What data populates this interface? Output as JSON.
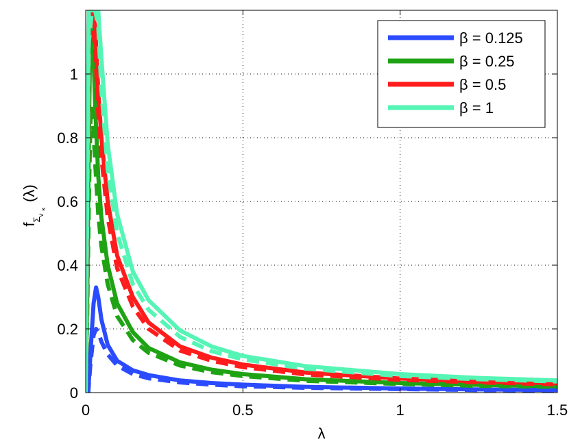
{
  "chart_data": {
    "type": "line",
    "title": "",
    "xlabel": "λ",
    "ylabel_main": "f",
    "ylabel_sub": "Σ",
    "ylabel_sub2": "ν",
    "ylabel_sub3": "κ",
    "ylabel_arg": "(λ)",
    "xlim": [
      0,
      1.5
    ],
    "ylim": [
      0,
      1.2
    ],
    "xticks": [
      0,
      0.5,
      1,
      1.5
    ],
    "xtick_labels": [
      "0",
      "0.5",
      "1",
      "1.5"
    ],
    "yticks": [
      0,
      0.2,
      0.4,
      0.6,
      0.8,
      1
    ],
    "ytick_labels": [
      "0",
      "0.2",
      "0.4",
      "0.6",
      "0.8",
      "1"
    ],
    "grid": true,
    "legend_position": "top-right",
    "series": [
      {
        "name": "β = 0.125",
        "color": "#2b4bff",
        "solid": {
          "x": [
            0.0,
            0.008,
            0.015,
            0.025,
            0.033,
            0.04,
            0.05,
            0.07,
            0.1,
            0.15,
            0.2,
            0.3,
            0.4,
            0.5,
            0.7,
            1.0,
            1.25,
            1.5
          ],
          "y": [
            0.0,
            0.0,
            0.12,
            0.28,
            0.33,
            0.3,
            0.23,
            0.15,
            0.1,
            0.07,
            0.055,
            0.038,
            0.03,
            0.025,
            0.018,
            0.013,
            0.01,
            0.008
          ]
        },
        "dashed": {
          "x": [
            0.0,
            0.008,
            0.015,
            0.025,
            0.033,
            0.04,
            0.05,
            0.07,
            0.1,
            0.15,
            0.2,
            0.3,
            0.4,
            0.5,
            0.7,
            1.0,
            1.25,
            1.5
          ],
          "y": [
            0.0,
            0.0,
            0.09,
            0.18,
            0.2,
            0.19,
            0.16,
            0.12,
            0.085,
            0.058,
            0.045,
            0.032,
            0.025,
            0.02,
            0.015,
            0.011,
            0.008,
            0.007
          ]
        }
      },
      {
        "name": "β = 0.25",
        "color": "#1fa314",
        "solid": {
          "x": [
            0.0,
            0.005,
            0.01,
            0.015,
            0.02,
            0.03,
            0.04,
            0.05,
            0.07,
            0.1,
            0.15,
            0.2,
            0.3,
            0.4,
            0.5,
            0.7,
            1.0,
            1.25,
            1.5
          ],
          "y": [
            0.0,
            0.3,
            0.8,
            1.15,
            1.2,
            0.9,
            0.68,
            0.55,
            0.4,
            0.28,
            0.19,
            0.14,
            0.095,
            0.072,
            0.058,
            0.042,
            0.03,
            0.024,
            0.02
          ]
        },
        "dashed": {
          "x": [
            0.0,
            0.005,
            0.01,
            0.015,
            0.02,
            0.03,
            0.04,
            0.05,
            0.07,
            0.1,
            0.15,
            0.2,
            0.3,
            0.4,
            0.5,
            0.7,
            1.0,
            1.25,
            1.5
          ],
          "y": [
            0.0,
            0.25,
            0.6,
            0.85,
            0.9,
            0.72,
            0.56,
            0.46,
            0.34,
            0.24,
            0.165,
            0.125,
            0.085,
            0.064,
            0.052,
            0.037,
            0.027,
            0.021,
            0.018
          ]
        }
      },
      {
        "name": "β = 0.5",
        "color": "#ff1c1c",
        "solid": {
          "x": [
            0.0,
            0.005,
            0.01,
            0.02,
            0.03,
            0.04,
            0.05,
            0.07,
            0.1,
            0.15,
            0.2,
            0.3,
            0.4,
            0.5,
            0.7,
            1.0,
            1.25,
            1.5
          ],
          "y": [
            0.0,
            0.6,
            1.2,
            1.2,
            1.15,
            0.95,
            0.8,
            0.6,
            0.43,
            0.3,
            0.22,
            0.145,
            0.11,
            0.088,
            0.063,
            0.044,
            0.035,
            0.029
          ]
        },
        "dashed": {
          "x": [
            0.0,
            0.005,
            0.01,
            0.02,
            0.03,
            0.04,
            0.05,
            0.07,
            0.1,
            0.15,
            0.2,
            0.3,
            0.4,
            0.5,
            0.7,
            1.0,
            1.25,
            1.5
          ],
          "y": [
            0.0,
            0.5,
            1.05,
            1.2,
            1.08,
            0.88,
            0.74,
            0.55,
            0.39,
            0.27,
            0.2,
            0.132,
            0.1,
            0.08,
            0.057,
            0.04,
            0.032,
            0.026
          ]
        }
      },
      {
        "name": "β = 1",
        "color": "#55f5b5",
        "solid": {
          "x": [
            0.0,
            0.005,
            0.01,
            0.02,
            0.03,
            0.04,
            0.05,
            0.07,
            0.1,
            0.15,
            0.2,
            0.3,
            0.4,
            0.5,
            0.7,
            1.0,
            1.25,
            1.5
          ],
          "y": [
            0.0,
            0.7,
            1.2,
            1.2,
            1.2,
            1.2,
            1.05,
            0.78,
            0.56,
            0.38,
            0.29,
            0.195,
            0.145,
            0.115,
            0.083,
            0.058,
            0.046,
            0.038
          ]
        },
        "dashed": {
          "x": [
            0.0,
            0.005,
            0.01,
            0.02,
            0.03,
            0.04,
            0.05,
            0.07,
            0.1,
            0.15,
            0.2,
            0.3,
            0.4,
            0.5,
            0.7,
            1.0,
            1.25,
            1.5
          ],
          "y": [
            0.0,
            0.6,
            1.1,
            1.2,
            1.2,
            1.15,
            0.95,
            0.7,
            0.5,
            0.34,
            0.26,
            0.175,
            0.13,
            0.104,
            0.075,
            0.052,
            0.042,
            0.035
          ]
        }
      }
    ]
  }
}
